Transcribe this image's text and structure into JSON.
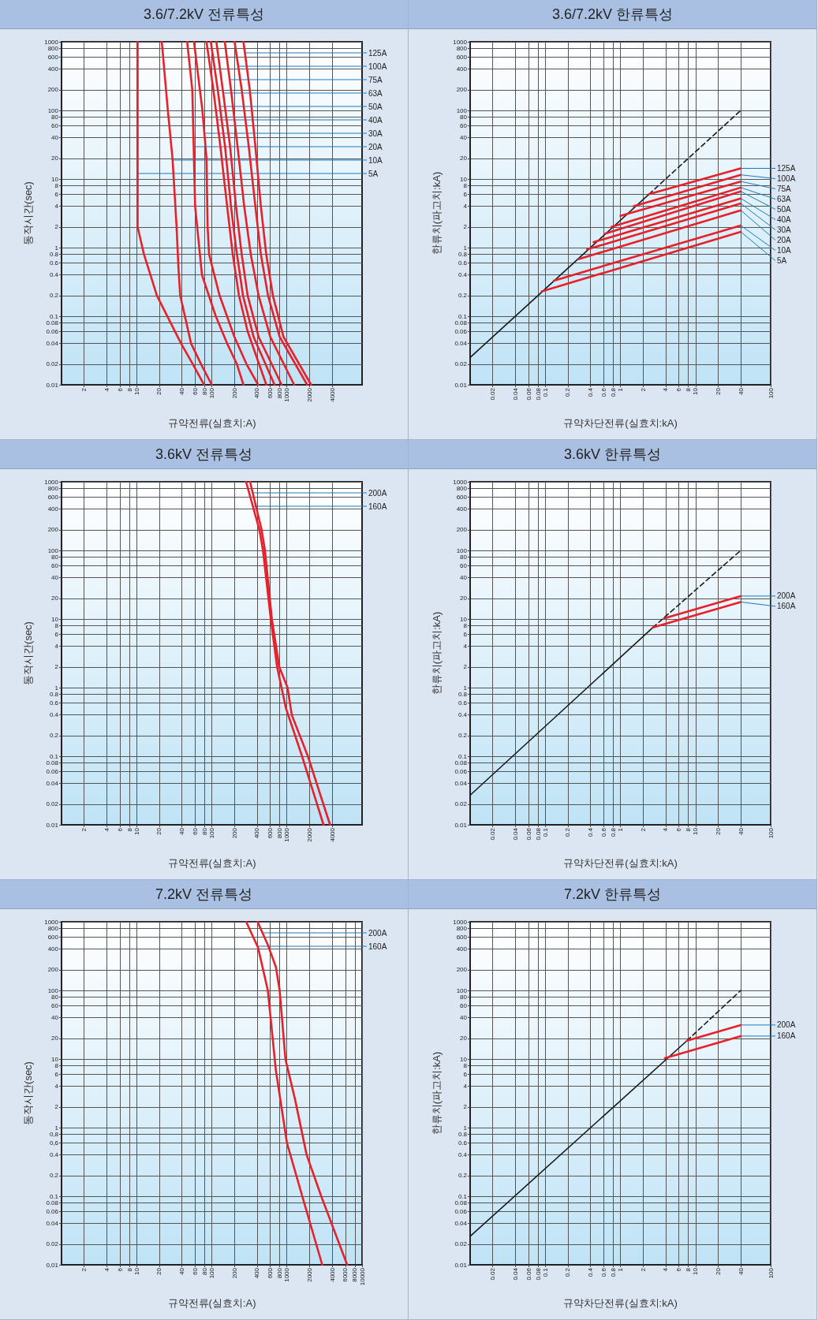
{
  "chart_data": [
    {
      "type": "line",
      "title": "3.6/7.2kV 전류특성",
      "xlabel": "규약전류(실효치:A)",
      "ylabel": "동작시간(sec)",
      "log": "xy",
      "grid": true,
      "xlim": [
        1,
        10000
      ],
      "xticks": [
        2,
        4,
        6,
        8,
        10,
        20,
        40,
        60,
        80,
        100,
        200,
        400,
        600,
        800,
        1000,
        2000,
        4000
      ],
      "ylim": [
        0.01,
        1000
      ],
      "yticks": [
        1000,
        800,
        600,
        400,
        200,
        100,
        80,
        60,
        40,
        20,
        10,
        8,
        6,
        4,
        2,
        1,
        0.8,
        0.6,
        0.4,
        0.2,
        0.1,
        0.08,
        0.06,
        0.04,
        0.02,
        0.01
      ],
      "series": [
        {
          "name": "5A",
          "color": "#e8202a",
          "x": [
            10.3,
            10.3,
            12.5,
            18.6,
            39,
            56,
            79
          ],
          "values": [
            1000,
            2,
            0.8,
            0.2,
            0.04,
            0.02,
            0.01
          ]
        },
        {
          "name": "10A",
          "color": "#e8202a",
          "x": [
            21.6,
            26,
            30,
            34,
            36,
            38,
            53,
            72,
            100
          ],
          "values": [
            1000,
            100,
            20,
            2,
            0.5,
            0.2,
            0.04,
            0.02,
            0.01
          ]
        },
        {
          "name": "20A",
          "color": "#e8202a",
          "x": [
            47,
            55,
            60,
            74,
            113,
            160,
            216,
            264
          ],
          "values": [
            1000,
            200,
            4,
            0.4,
            0.1,
            0.04,
            0.02,
            0.01
          ]
        },
        {
          "name": "30A",
          "color": "#e8202a",
          "x": [
            58,
            75,
            85,
            88,
            92,
            127,
            200,
            290,
            414
          ],
          "values": [
            1000,
            100,
            20,
            2,
            0.8,
            0.2,
            0.05,
            0.02,
            0.01
          ]
        },
        {
          "name": "40A",
          "color": "#e8202a",
          "x": [
            85,
            105,
            130,
            160,
            190,
            230,
            300,
            532
          ],
          "values": [
            1000,
            200,
            30,
            4,
            0.8,
            0.2,
            0.06,
            0.01
          ]
        },
        {
          "name": "50A",
          "color": "#e8202a",
          "x": [
            97,
            120,
            150,
            180,
            210,
            260,
            360,
            684
          ],
          "values": [
            1000,
            200,
            30,
            4,
            1,
            0.2,
            0.05,
            0.01
          ]
        },
        {
          "name": "63A",
          "color": "#e8202a",
          "x": [
            115,
            140,
            175,
            210,
            250,
            300,
            420,
            851
          ],
          "values": [
            1000,
            200,
            30,
            4,
            0.8,
            0.2,
            0.05,
            0.01
          ]
        },
        {
          "name": "75A",
          "color": "#e8202a",
          "x": [
            149,
            180,
            220,
            270,
            330,
            420,
            600,
            1248
          ],
          "values": [
            1000,
            200,
            30,
            4,
            0.8,
            0.2,
            0.05,
            0.01
          ]
        },
        {
          "name": "100A",
          "color": "#e8202a",
          "x": [
            201,
            250,
            310,
            380,
            450,
            560,
            800,
            1862
          ],
          "values": [
            1000,
            200,
            30,
            4,
            0.8,
            0.2,
            0.05,
            0.01
          ]
        },
        {
          "name": "125A",
          "color": "#e8202a",
          "x": [
            264,
            320,
            380,
            450,
            530,
            650,
            900,
            2100
          ],
          "values": [
            1000,
            200,
            30,
            4,
            0.8,
            0.2,
            0.05,
            0.01
          ]
        }
      ]
    },
    {
      "type": "line",
      "title": "3.6/7.2kV 한류특성",
      "xlabel": "규약차단전류(실효치:kA)",
      "ylabel": "한류치(파고치:kA)",
      "log": "xy",
      "grid": true,
      "xlim": [
        0.01,
        100
      ],
      "xticks": [
        0.02,
        0.04,
        0.06,
        0.08,
        0.1,
        0.2,
        0.4,
        0.6,
        0.8,
        1,
        2,
        4,
        6,
        8,
        10,
        20,
        40,
        100
      ],
      "ylim": [
        0.01,
        1000
      ],
      "yticks": [
        1000,
        800,
        600,
        400,
        200,
        100,
        80,
        60,
        40,
        20,
        10,
        8,
        6,
        4,
        2,
        1,
        0.8,
        0.6,
        0.4,
        0.2,
        0.1,
        0.08,
        0.06,
        0.04,
        0.02,
        0.01
      ],
      "series": [
        {
          "color": "#1a1a1a",
          "line_style": "solid",
          "x": [
            0.01,
            2.4
          ],
          "values": [
            0.025,
            6
          ]
        },
        {
          "color": "#1a1a1a",
          "line_style": "dashed",
          "x": [
            2.4,
            40
          ],
          "values": [
            6,
            100
          ]
        },
        {
          "name": "5A",
          "color": "#e8202a",
          "x": [
            0.09,
            40
          ],
          "values": [
            0.23,
            1.7
          ]
        },
        {
          "name": "10A",
          "color": "#e8202a",
          "x": [
            0.13,
            40
          ],
          "values": [
            0.33,
            2.1
          ]
        },
        {
          "name": "20A",
          "color": "#e8202a",
          "x": [
            0.28,
            40
          ],
          "values": [
            0.68,
            3.5
          ]
        },
        {
          "name": "30A",
          "color": "#e8202a",
          "x": [
            0.36,
            40
          ],
          "values": [
            0.94,
            4.4
          ]
        },
        {
          "name": "40A",
          "color": "#e8202a",
          "x": [
            0.44,
            40
          ],
          "values": [
            1.2,
            5.2
          ]
        },
        {
          "name": "50A",
          "color": "#e8202a",
          "x": [
            0.63,
            40
          ],
          "values": [
            1.6,
            6.6
          ]
        },
        {
          "name": "63A",
          "color": "#e8202a",
          "x": [
            0.76,
            40
          ],
          "values": [
            2,
            7.5
          ]
        },
        {
          "name": "75A",
          "color": "#e8202a",
          "x": [
            1,
            40
          ],
          "values": [
            2.9,
            9.2
          ]
        },
        {
          "name": "100A",
          "color": "#e8202a",
          "x": [
            1.5,
            40
          ],
          "values": [
            4,
            11.5
          ]
        },
        {
          "name": "125A",
          "color": "#e8202a",
          "x": [
            2.4,
            40
          ],
          "values": [
            6,
            14.3
          ]
        }
      ]
    },
    {
      "type": "line",
      "title": "3.6kV 전류특성",
      "xlabel": "규약전류(실효치:A)",
      "ylabel": "동작시간(sec)",
      "log": "xy",
      "grid": true,
      "xlim": [
        1,
        10000
      ],
      "xticks": [
        2,
        4,
        6,
        8,
        10,
        20,
        40,
        60,
        80,
        100,
        200,
        400,
        600,
        800,
        1000,
        2000,
        4000
      ],
      "ylim": [
        0.01,
        1000
      ],
      "yticks": [
        1000,
        800,
        600,
        400,
        200,
        100,
        80,
        60,
        40,
        20,
        10,
        8,
        6,
        4,
        2,
        1,
        0.8,
        0.6,
        0.4,
        0.2,
        0.1,
        0.08,
        0.06,
        0.04,
        0.02,
        0.01
      ],
      "series": [
        {
          "name": "160A",
          "color": "#e8202a",
          "x": [
            286,
            430,
            480,
            610,
            740,
            970,
            1590,
            3070
          ],
          "values": [
            1000,
            200,
            100,
            10,
            2,
            0.5,
            0.1,
            0.01
          ]
        },
        {
          "name": "200A",
          "color": "#e8202a",
          "x": [
            323,
            460,
            510,
            630,
            790,
            1020,
            1160,
            1900,
            3750
          ],
          "values": [
            1000,
            200,
            100,
            10,
            2,
            1,
            0.4,
            0.1,
            0.01
          ]
        }
      ]
    },
    {
      "type": "line",
      "title": "3.6kV 한류특성",
      "xlabel": "규약차단전류(실효치:kA)",
      "ylabel": "한류치(파고치:kA)",
      "log": "xy",
      "grid": true,
      "xlim": [
        0.01,
        100
      ],
      "xticks": [
        0.02,
        0.04,
        0.06,
        0.08,
        0.1,
        0.2,
        0.4,
        0.6,
        0.8,
        1,
        2,
        4,
        6,
        8,
        10,
        20,
        40,
        100
      ],
      "ylim": [
        0.01,
        1000
      ],
      "yticks": [
        1000,
        800,
        600,
        400,
        200,
        100,
        80,
        60,
        40,
        20,
        10,
        8,
        6,
        4,
        2,
        1,
        0.8,
        0.6,
        0.4,
        0.2,
        0.1,
        0.08,
        0.06,
        0.04,
        0.02,
        0.01
      ],
      "series": [
        {
          "color": "#1a1a1a",
          "line_style": "solid",
          "x": [
            0.01,
            2.7
          ],
          "values": [
            0.027,
            7.5
          ]
        },
        {
          "color": "#1a1a1a",
          "line_style": "dashed",
          "x": [
            2.7,
            40
          ],
          "values": [
            7.5,
            100
          ]
        },
        {
          "name": "160A",
          "color": "#e8202a",
          "x": [
            2.7,
            40
          ],
          "values": [
            7.5,
            17.7
          ]
        },
        {
          "name": "200A",
          "color": "#e8202a",
          "x": [
            3.8,
            40
          ],
          "values": [
            10.2,
            21.6
          ]
        }
      ]
    },
    {
      "type": "line",
      "title": "7.2kV 전류특성",
      "xlabel": "규약전류(실효치:A)",
      "ylabel": "동작시간(sec)",
      "log": "xy",
      "grid": true,
      "xlim": [
        1,
        10000
      ],
      "xticks": [
        2,
        4,
        6,
        8,
        10,
        20,
        40,
        60,
        80,
        100,
        200,
        400,
        600,
        800,
        1000,
        2000,
        4000,
        6000,
        8000,
        10000
      ],
      "ylim": [
        0.01,
        1000
      ],
      "yticks": [
        1000,
        800,
        600,
        400,
        200,
        100,
        80,
        60,
        40,
        20,
        10,
        8,
        6,
        4,
        2,
        1,
        {
          "value": 0.8,
          "label": "0,8"
        },
        {
          "value": 0.6,
          "label": "0,6"
        },
        0.4,
        0.2,
        0.1,
        0.08,
        0.06,
        0.04,
        0.02,
        {
          "value": 0.01,
          "label": "0,01"
        }
      ],
      "series": [
        {
          "name": "160A",
          "color": "#e8202a",
          "x": [
            287,
            413,
            557,
            713,
            1000,
            1600,
            2950
          ],
          "values": [
            1000,
            420,
            100,
            6.8,
            0.6,
            0.1,
            0.01
          ]
        },
        {
          "name": "200A",
          "color": "#e8202a",
          "x": [
            406,
            557,
            713,
            800,
            955,
            1290,
            1830,
            2860,
            6340
          ],
          "values": [
            1000,
            460,
            220,
            100,
            10,
            2.5,
            0.4,
            0.1,
            0.01
          ]
        }
      ]
    },
    {
      "type": "line",
      "title": "7.2kV 한류특성",
      "xlabel": "규약차단전류(실효치:kA)",
      "ylabel": "한류치(파고치:kA)",
      "log": "xy",
      "grid": true,
      "xlim": [
        0.01,
        100
      ],
      "xticks": [
        0.02,
        0.04,
        0.06,
        0.08,
        0.1,
        0.2,
        0.4,
        0.6,
        0.8,
        1,
        2,
        4,
        6,
        8,
        10,
        20,
        40,
        100
      ],
      "ylim": [
        0.01,
        1000
      ],
      "yticks": [
        1000,
        800,
        600,
        400,
        200,
        100,
        80,
        60,
        40,
        20,
        10,
        8,
        6,
        4,
        2,
        1,
        0.8,
        0.6,
        0.4,
        0.2,
        0.1,
        0.08,
        0.06,
        0.04,
        0.02,
        0.01
      ],
      "series": [
        {
          "color": "#1a1a1a",
          "line_style": "solid",
          "x": [
            0.01,
            7.7
          ],
          "values": [
            0.026,
            18.5
          ]
        },
        {
          "color": "#1a1a1a",
          "line_style": "dashed",
          "x": [
            7.7,
            40
          ],
          "values": [
            18.5,
            100
          ]
        },
        {
          "name": "160A",
          "color": "#e8202a",
          "x": [
            3.9,
            40
          ],
          "values": [
            10.3,
            21.6
          ]
        },
        {
          "name": "200A",
          "color": "#e8202a",
          "x": [
            7.7,
            40
          ],
          "values": [
            18.5,
            31.3
          ]
        }
      ]
    }
  ]
}
